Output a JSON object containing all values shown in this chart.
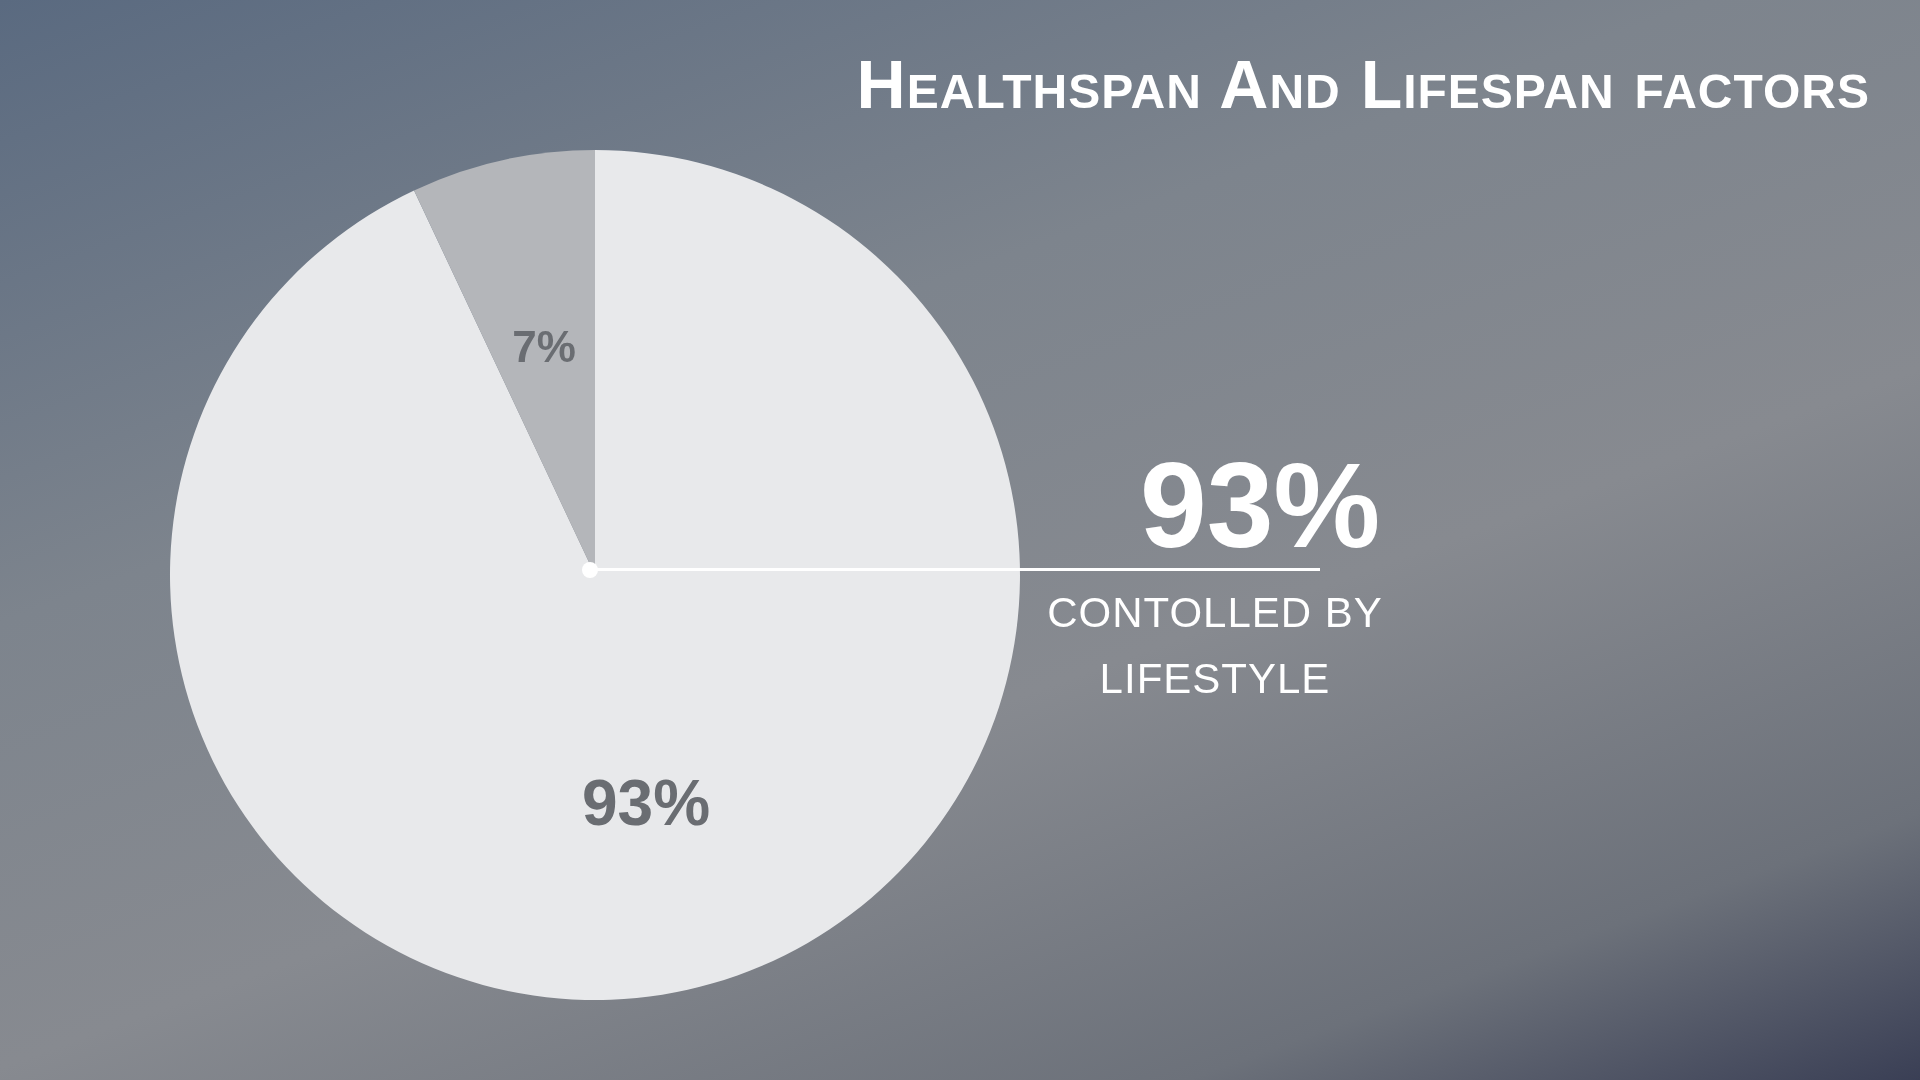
{
  "chart_data": {
    "type": "pie",
    "title": "Healthspan And Lifespan factors",
    "categories": [
      null,
      null
    ],
    "values": [
      93,
      7
    ],
    "colors": [
      "#e8e9eb",
      "#b4b6ba"
    ],
    "value_labels": [
      "93%",
      "7%"
    ],
    "annotations": [
      "93%",
      "CONTOLLED BY LIFESTYLE"
    ],
    "legend": false
  }
}
